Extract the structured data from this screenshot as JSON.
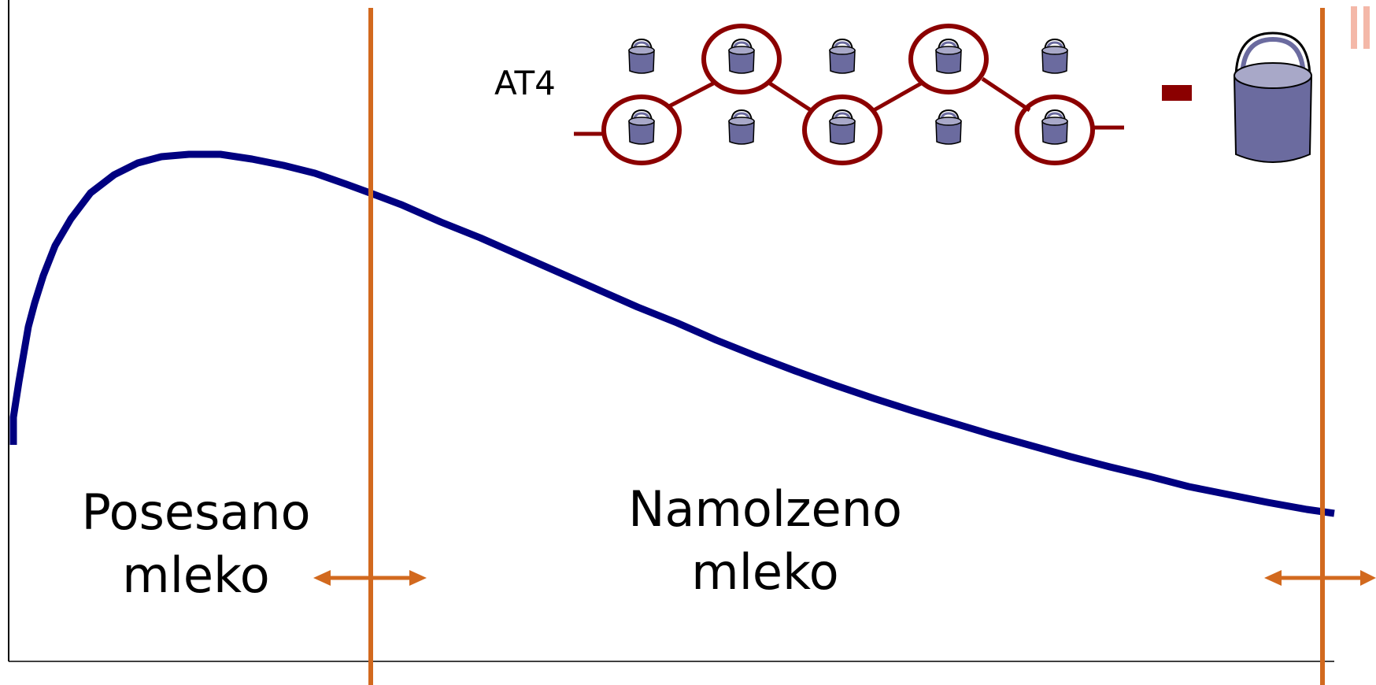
{
  "colors": {
    "curve": "#000080",
    "divider": "#d2691e",
    "chain": "#8b0000",
    "bucket_fill": "#6b6b9f",
    "bucket_top": "#a8a8c8",
    "bucket_stroke": "#000000",
    "corner_accent": "#f4b8a8"
  },
  "labels": {
    "method": "AT4",
    "minus": "-",
    "left_region_line1": "Posesano",
    "left_region_line2": "mleko",
    "right_region_line1": "Namolzeno",
    "right_region_line2": "mleko"
  },
  "icons": {
    "small_bucket": "bucket-icon",
    "big_bucket": "large-bucket-icon",
    "arrow": "double-headed-arrow-icon"
  }
}
